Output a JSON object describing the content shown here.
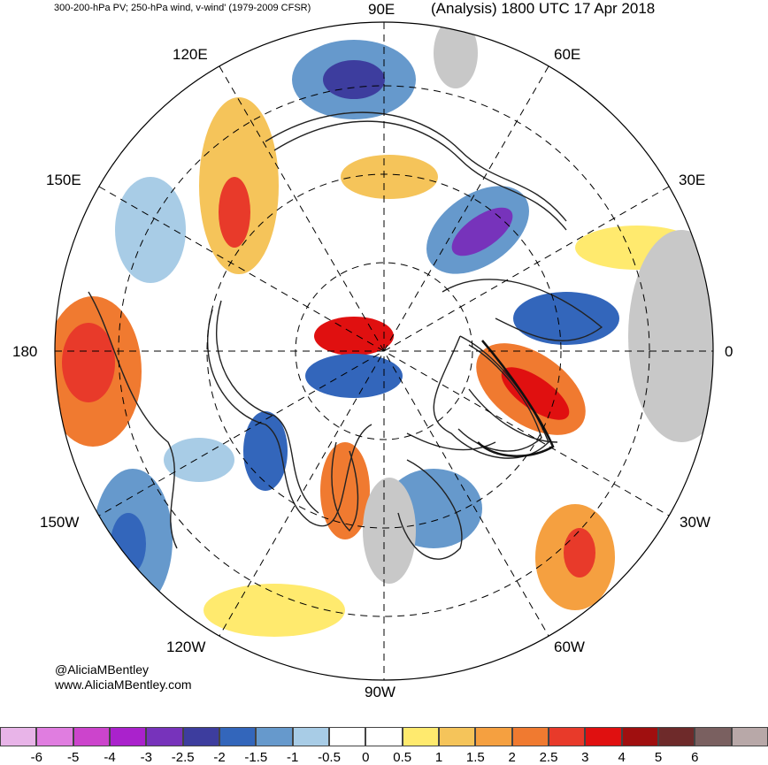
{
  "header": {
    "left_title": "300-200-hPa PV; 250-hPa wind, v-wind' (1979-2009 CFSR)",
    "right_title": "(Analysis) 1800 UTC 17 Apr 2018"
  },
  "longitude_labels": {
    "e90": "90E",
    "e120": "120E",
    "e60": "60E",
    "e150": "150E",
    "e30": "30E",
    "d180": "180",
    "d0": "0",
    "w150": "150W",
    "w30": "30W",
    "w120": "120W",
    "w60": "60W",
    "w90": "90W"
  },
  "credit": {
    "handle": "@AliciaMBentley",
    "site": "www.AliciaMBentley.com"
  },
  "colorbar": {
    "colors": [
      "#e8b4e8",
      "#e07de0",
      "#cc44cc",
      "#aa22cc",
      "#7733bb",
      "#3d3d9e",
      "#3366bb",
      "#6699cc",
      "#a8cce6",
      "#ffffff",
      "#ffffff",
      "#ffea6e",
      "#f5c45a",
      "#f5a040",
      "#f07a30",
      "#e83a2a",
      "#e01010",
      "#a00f0f",
      "#6e2a2a",
      "#7a6060",
      "#b8a8a8"
    ],
    "ticks": [
      "-6",
      "-5",
      "-4",
      "-3",
      "-2.5",
      "-2",
      "-1.5",
      "-1",
      "-0.5",
      "0",
      "0.5",
      "1",
      "1.5",
      "2",
      "2.5",
      "3",
      "4",
      "5",
      "6"
    ]
  }
}
